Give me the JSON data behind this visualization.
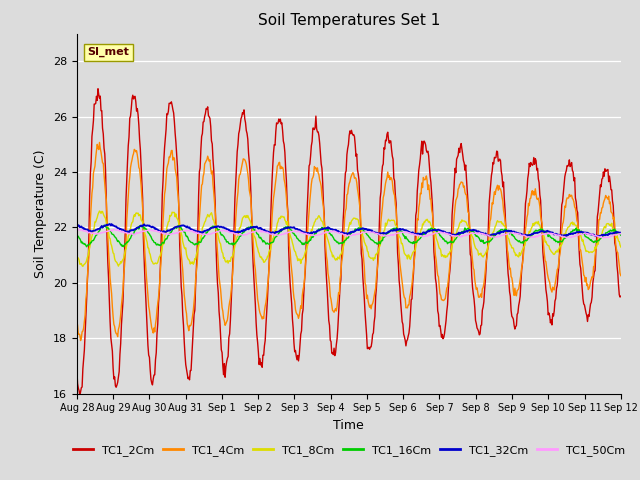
{
  "title": "Soil Temperatures Set 1",
  "xlabel": "Time",
  "ylabel": "Soil Temperature (C)",
  "ylim": [
    16,
    29
  ],
  "yticks": [
    16,
    18,
    20,
    22,
    24,
    26,
    28
  ],
  "background_color": "#dcdcdc",
  "series": [
    {
      "label": "TC1_2Cm",
      "color": "#cc0000",
      "lw": 1.0
    },
    {
      "label": "TC1_4Cm",
      "color": "#ff8800",
      "lw": 1.0
    },
    {
      "label": "TC1_8Cm",
      "color": "#dddd00",
      "lw": 1.0
    },
    {
      "label": "TC1_16Cm",
      "color": "#00cc00",
      "lw": 1.0
    },
    {
      "label": "TC1_32Cm",
      "color": "#0000cc",
      "lw": 1.3
    },
    {
      "label": "TC1_50Cm",
      "color": "#ff99ff",
      "lw": 1.0
    }
  ],
  "annotation_text": "SI_met",
  "xtick_labels": [
    "Aug 28",
    "Aug 29",
    "Aug 30",
    "Aug 31",
    "Sep 1",
    "Sep 2",
    "Sep 3",
    "Sep 4",
    "Sep 5",
    "Sep 6",
    "Sep 7",
    "Sep 8",
    "Sep 9",
    "Sep 10",
    "Sep 11",
    "Sep 12"
  ]
}
